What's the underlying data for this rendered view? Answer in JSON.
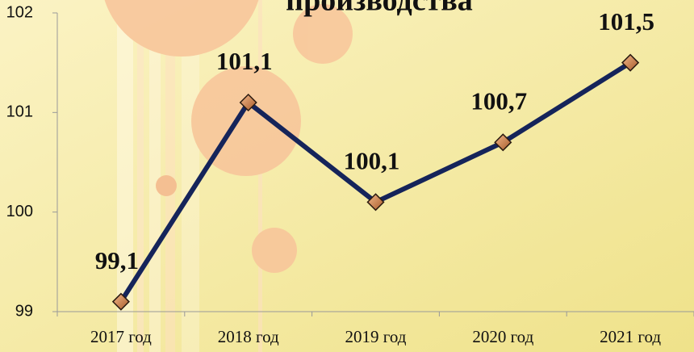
{
  "chart_data": {
    "type": "line",
    "title": "производства",
    "categories": [
      "2017 год",
      "2018 год",
      "2019 год",
      "2020 год",
      "2021 год"
    ],
    "series": [
      {
        "name": null,
        "color": "#15245a",
        "values": [
          99.1,
          101.1,
          100.1,
          100.7,
          101.5
        ],
        "value_labels": [
          "99,1",
          "101,1",
          "100,1",
          "100,7",
          "101,5"
        ]
      }
    ],
    "ylim": [
      99,
      102
    ],
    "yticks": [
      99,
      100,
      101,
      102
    ],
    "grid": false
  }
}
